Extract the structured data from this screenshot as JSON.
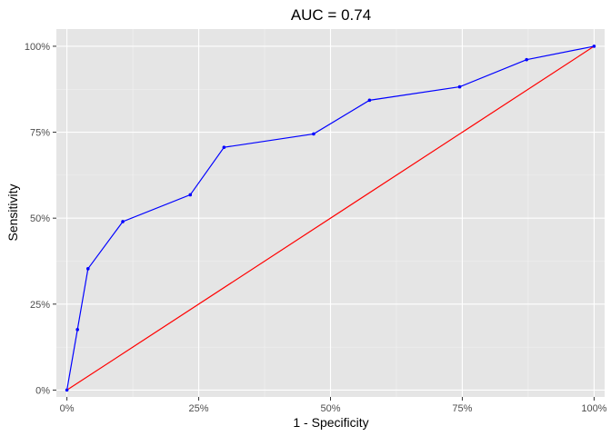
{
  "chart_data": {
    "type": "line",
    "title": "AUC = 0.74",
    "xlabel": "1 - Specificity",
    "ylabel": "Sensitivity",
    "xlim": [
      -0.02,
      1.02
    ],
    "ylim": [
      -0.02,
      1.05
    ],
    "x_ticks": [
      0,
      0.25,
      0.5,
      0.75,
      1
    ],
    "x_tick_labels": [
      "0%",
      "25%",
      "50%",
      "75%",
      "100%"
    ],
    "y_ticks": [
      0,
      0.25,
      0.5,
      0.75,
      1
    ],
    "y_tick_labels": [
      "0%",
      "25%",
      "50%",
      "75%",
      "100%"
    ],
    "grid": true,
    "background": "#e5e5e5",
    "series": [
      {
        "color": "#0000ff",
        "markers": true,
        "x": [
          0,
          0.02,
          0.04,
          0.106,
          0.234,
          0.298,
          0.468,
          0.574,
          0.745,
          0.872,
          1.0
        ],
        "y": [
          0,
          0.176,
          0.353,
          0.49,
          0.568,
          0.706,
          0.745,
          0.843,
          0.882,
          0.961,
          1.0
        ]
      },
      {
        "color": "#ff0000",
        "markers": false,
        "x": [
          0,
          1
        ],
        "y": [
          0,
          1
        ]
      }
    ]
  }
}
